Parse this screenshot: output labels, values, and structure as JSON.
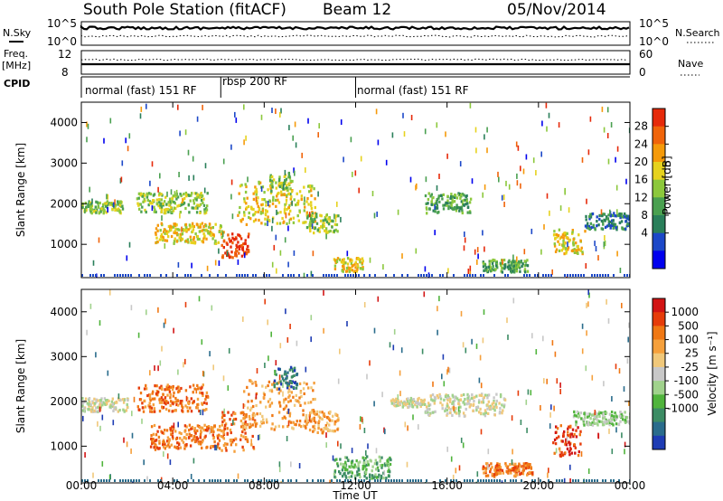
{
  "header": {
    "station": "South Pole Station (fitACF)",
    "beam": "Beam 12",
    "date": "05/Nov/2014"
  },
  "side_labels": {
    "n_sky": "N.Sky",
    "freq": "Freq.",
    "freq_unit": "[MHz]",
    "cpid": "CPID",
    "n_search": "N.Search",
    "nave": "Nave"
  },
  "noise_panel": {
    "left_ticks": [
      "10^5",
      "10^0"
    ],
    "right_ticks": [
      "10^5",
      "10^0"
    ]
  },
  "freq_panel": {
    "left_ticks": [
      "12",
      "8"
    ],
    "right_ticks": [
      "60",
      "0"
    ]
  },
  "cpid_modes": [
    {
      "label": "normal (fast) 151 RF",
      "start_hour": 0,
      "end_hour": 6.1
    },
    {
      "label": "rbsp 200 RF",
      "start_hour": 6.1,
      "end_hour": 12.0
    },
    {
      "label": "normal (fast) 151 RF",
      "start_hour": 12.0,
      "end_hour": 24
    }
  ],
  "power_colorbar": {
    "label": "Power [dB]",
    "ticks": [
      "28",
      "24",
      "20",
      "16",
      "12",
      "8",
      "4"
    ],
    "colors": [
      "#0000ee",
      "#1c48c8",
      "#2a7f5a",
      "#4aa050",
      "#8cc83c",
      "#e6d21e",
      "#f59a0a",
      "#f0640a",
      "#e62a0a"
    ]
  },
  "velocity_colorbar": {
    "label": "Velocity [m s⁻¹]",
    "ticks": [
      "1000",
      "500",
      "100",
      "25",
      "-25",
      "-100",
      "-500",
      "-1000"
    ],
    "colors": [
      "#1e3cb4",
      "#2a6c8c",
      "#3c8c64",
      "#50b43c",
      "#a0d28c",
      "#c8c8c8",
      "#f0c87a",
      "#f5a03c",
      "#f07814",
      "#e63c0a",
      "#d21414"
    ]
  },
  "x_axis": {
    "label": "Time UT",
    "ticks": [
      "00:00",
      "04:00",
      "08:00",
      "12:00",
      "16:00",
      "20:00",
      "00:00"
    ]
  },
  "y_axis": {
    "label": "Slant Range [km]",
    "ticks": [
      "1000",
      "2000",
      "3000",
      "4000"
    ]
  },
  "chart_data": [
    {
      "type": "heatmap",
      "name": "power",
      "x_range_hours": [
        0,
        24
      ],
      "ylim_km": [
        180,
        4500
      ],
      "colorbar": "Power [dB]",
      "echo_bands": [
        {
          "t0": 0.0,
          "t1": 1.8,
          "r0": 1800,
          "r1": 2100,
          "level": 4
        },
        {
          "t0": 2.4,
          "t1": 5.5,
          "r0": 1800,
          "r1": 2300,
          "level": 4
        },
        {
          "t0": 3.2,
          "t1": 6.2,
          "r0": 1050,
          "r1": 1550,
          "level": 5
        },
        {
          "t0": 6.1,
          "t1": 7.3,
          "r0": 700,
          "r1": 1300,
          "level": 8
        },
        {
          "t0": 6.8,
          "t1": 10.2,
          "r0": 1500,
          "r1": 2600,
          "level": 5
        },
        {
          "t0": 8.2,
          "t1": 9.2,
          "r0": 2200,
          "r1": 2800,
          "level": 4
        },
        {
          "t0": 9.8,
          "t1": 11.2,
          "r0": 1300,
          "r1": 1800,
          "level": 4
        },
        {
          "t0": 11.0,
          "t1": 12.3,
          "r0": 350,
          "r1": 700,
          "level": 5
        },
        {
          "t0": 15.0,
          "t1": 17.0,
          "r0": 1800,
          "r1": 2300,
          "level": 3
        },
        {
          "t0": 17.5,
          "t1": 19.5,
          "r0": 350,
          "r1": 650,
          "level": 3
        },
        {
          "t0": 20.5,
          "t1": 22.0,
          "r0": 800,
          "r1": 1400,
          "level": 5
        },
        {
          "t0": 22.0,
          "t1": 24.0,
          "r0": 1400,
          "r1": 1800,
          "level": 2
        }
      ]
    },
    {
      "type": "heatmap",
      "name": "velocity",
      "x_range_hours": [
        0,
        24
      ],
      "ylim_km": [
        180,
        4500
      ],
      "colorbar": "Velocity [m s⁻¹]",
      "echo_bands": [
        {
          "t0": 0.0,
          "t1": 2.0,
          "r0": 1800,
          "r1": 2100,
          "level": 5
        },
        {
          "t0": 2.4,
          "t1": 5.5,
          "r0": 1800,
          "r1": 2400,
          "level": 8
        },
        {
          "t0": 3.0,
          "t1": 6.2,
          "r0": 950,
          "r1": 1500,
          "level": 8
        },
        {
          "t0": 6.1,
          "t1": 7.6,
          "r0": 900,
          "r1": 1800,
          "level": 8
        },
        {
          "t0": 7.0,
          "t1": 10.2,
          "r0": 1400,
          "r1": 2500,
          "level": 7
        },
        {
          "t0": 8.4,
          "t1": 9.4,
          "r0": 2300,
          "r1": 2800,
          "level": 1
        },
        {
          "t0": 9.8,
          "t1": 11.2,
          "r0": 1300,
          "r1": 1800,
          "level": 7
        },
        {
          "t0": 11.0,
          "t1": 13.5,
          "r0": 300,
          "r1": 800,
          "level": 3
        },
        {
          "t0": 13.5,
          "t1": 15.0,
          "r0": 1900,
          "r1": 2100,
          "level": 5
        },
        {
          "t0": 15.0,
          "t1": 18.5,
          "r0": 1700,
          "r1": 2200,
          "level": 5
        },
        {
          "t0": 17.5,
          "t1": 19.8,
          "r0": 350,
          "r1": 650,
          "level": 8
        },
        {
          "t0": 20.6,
          "t1": 21.8,
          "r0": 800,
          "r1": 1500,
          "level": 9
        },
        {
          "t0": 21.5,
          "t1": 24.0,
          "r0": 1500,
          "r1": 1800,
          "level": 4
        }
      ]
    }
  ]
}
